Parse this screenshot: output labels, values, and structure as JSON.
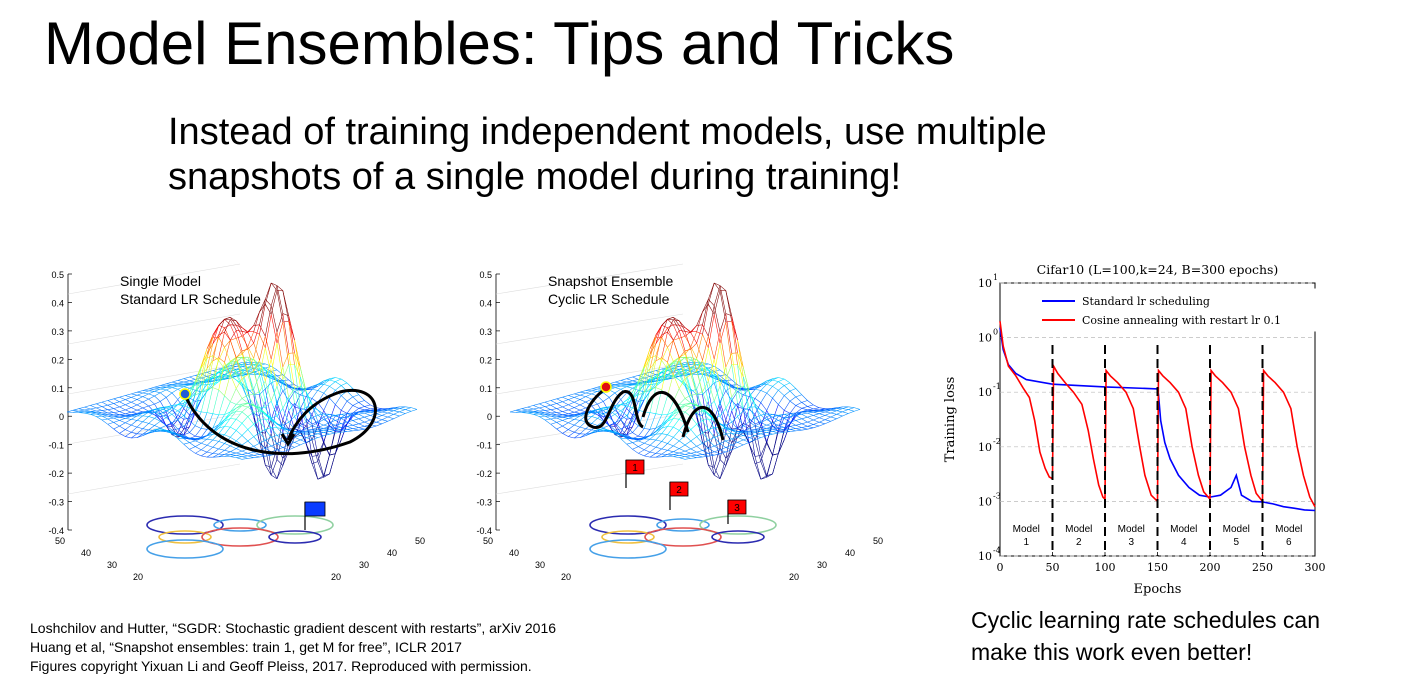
{
  "slide": {
    "title": "Model Ensembles: Tips and Tricks",
    "subtitle_line1": "Instead of training independent models, use multiple",
    "subtitle_line2": "snapshots of a single model during training!",
    "references": [
      "Loshchilov and Hutter, “SGDR: Stochastic gradient descent with restarts”, arXiv 2016",
      "Huang et al, “Snapshot ensembles: train 1, get M for free”, ICLR 2017",
      "Figures copyright Yixuan Li and Geoff Pleiss, 2017. Reproduced with permission."
    ],
    "caption_line1": "Cyclic learning rate schedules can",
    "caption_line2": "make this work even better!"
  },
  "surface_plots": [
    {
      "title_line1": "Single Model",
      "title_line2": "Standard LR Schedule",
      "marker_color": "#1f5cd6",
      "flag_color": "#0a3cff"
    },
    {
      "title_line1": "Snapshot Ensemble",
      "title_line2": "Cyclic LR Schedule",
      "marker_color": "#e01010",
      "flag_color": "#ff0000",
      "flags": [
        "1",
        "2",
        "3"
      ]
    }
  ],
  "surface_axis": {
    "z_ticks": [
      "0.5",
      "0.4",
      "0.3",
      "0.2",
      "0.1",
      "0",
      "-0.1",
      "-0.2",
      "-0.3",
      "-0.4"
    ],
    "left_ticks": [
      "50",
      "40",
      "30",
      "20"
    ],
    "right_ticks": [
      "50",
      "40",
      "30",
      "20"
    ]
  },
  "chart_data": {
    "type": "line",
    "title": "Cifar10 (L=100,k=24, B=300 epochs)",
    "xlabel": "Epochs",
    "ylabel": "Training loss",
    "xlim": [
      0,
      300
    ],
    "yscale": "log",
    "ylim": [
      0.0001,
      10
    ],
    "x_ticks": [
      "0",
      "50",
      "100",
      "150",
      "200",
      "250",
      "300"
    ],
    "y_ticks": [
      {
        "base": "10",
        "exp": "1",
        "value": 10
      },
      {
        "base": "10",
        "exp": "0",
        "value": 1
      },
      {
        "base": "10",
        "exp": "-1",
        "value": 0.1
      },
      {
        "base": "10",
        "exp": "-2",
        "value": 0.01
      },
      {
        "base": "10",
        "exp": "-3",
        "value": 0.001
      },
      {
        "base": "10",
        "exp": "-4",
        "value": 0.0001
      }
    ],
    "grid": true,
    "legend_position": "top-right",
    "restarts": [
      50,
      100,
      150,
      200,
      250
    ],
    "model_labels": [
      {
        "name": "Model",
        "num": "1",
        "x": 25
      },
      {
        "name": "Model",
        "num": "2",
        "x": 75
      },
      {
        "name": "Model",
        "num": "3",
        "x": 125
      },
      {
        "name": "Model",
        "num": "4",
        "x": 175
      },
      {
        "name": "Model",
        "num": "5",
        "x": 225
      },
      {
        "name": "Model",
        "num": "6",
        "x": 275
      }
    ],
    "series": [
      {
        "name": "Standard lr scheduling",
        "color": "#0000ff",
        "points": [
          [
            0,
            1.5
          ],
          [
            3,
            0.6
          ],
          [
            8,
            0.32
          ],
          [
            15,
            0.22
          ],
          [
            25,
            0.17
          ],
          [
            50,
            0.14
          ],
          [
            100,
            0.125
          ],
          [
            150,
            0.115
          ],
          [
            151,
            0.09
          ],
          [
            153,
            0.03
          ],
          [
            157,
            0.012
          ],
          [
            162,
            0.006
          ],
          [
            170,
            0.003
          ],
          [
            180,
            0.0018
          ],
          [
            190,
            0.0013
          ],
          [
            200,
            0.0012
          ],
          [
            210,
            0.0013
          ],
          [
            220,
            0.0018
          ],
          [
            225,
            0.003
          ],
          [
            230,
            0.0013
          ],
          [
            240,
            0.001
          ],
          [
            250,
            0.00098
          ],
          [
            260,
            0.0009
          ],
          [
            270,
            0.0008
          ],
          [
            280,
            0.00075
          ],
          [
            290,
            0.0007
          ],
          [
            300,
            0.00068
          ]
        ]
      },
      {
        "name": "Cosine annealing with restart lr 0.1",
        "color": "#ff0000",
        "points": [
          [
            0,
            2.0
          ],
          [
            3,
            0.7
          ],
          [
            8,
            0.3
          ],
          [
            15,
            0.2
          ],
          [
            22,
            0.12
          ],
          [
            28,
            0.08
          ],
          [
            33,
            0.03
          ],
          [
            38,
            0.008
          ],
          [
            43,
            0.004
          ],
          [
            47,
            0.0028
          ],
          [
            50,
            0.0026
          ],
          [
            51,
            0.3
          ],
          [
            55,
            0.22
          ],
          [
            62,
            0.15
          ],
          [
            70,
            0.1
          ],
          [
            78,
            0.06
          ],
          [
            84,
            0.02
          ],
          [
            89,
            0.006
          ],
          [
            94,
            0.002
          ],
          [
            98,
            0.0012
          ],
          [
            100,
            0.0011
          ],
          [
            101,
            0.25
          ],
          [
            105,
            0.2
          ],
          [
            112,
            0.15
          ],
          [
            120,
            0.1
          ],
          [
            127,
            0.05
          ],
          [
            133,
            0.01
          ],
          [
            138,
            0.003
          ],
          [
            144,
            0.0013
          ],
          [
            150,
            0.001
          ],
          [
            151,
            0.25
          ],
          [
            155,
            0.2
          ],
          [
            162,
            0.15
          ],
          [
            170,
            0.1
          ],
          [
            177,
            0.05
          ],
          [
            183,
            0.01
          ],
          [
            189,
            0.003
          ],
          [
            194,
            0.0015
          ],
          [
            200,
            0.0011
          ],
          [
            201,
            0.25
          ],
          [
            205,
            0.2
          ],
          [
            212,
            0.15
          ],
          [
            220,
            0.1
          ],
          [
            227,
            0.05
          ],
          [
            233,
            0.01
          ],
          [
            239,
            0.003
          ],
          [
            244,
            0.0014
          ],
          [
            250,
            0.001
          ],
          [
            251,
            0.25
          ],
          [
            255,
            0.2
          ],
          [
            262,
            0.15
          ],
          [
            270,
            0.1
          ],
          [
            277,
            0.05
          ],
          [
            283,
            0.01
          ],
          [
            289,
            0.003
          ],
          [
            295,
            0.0012
          ],
          [
            300,
            0.0008
          ]
        ]
      }
    ]
  }
}
